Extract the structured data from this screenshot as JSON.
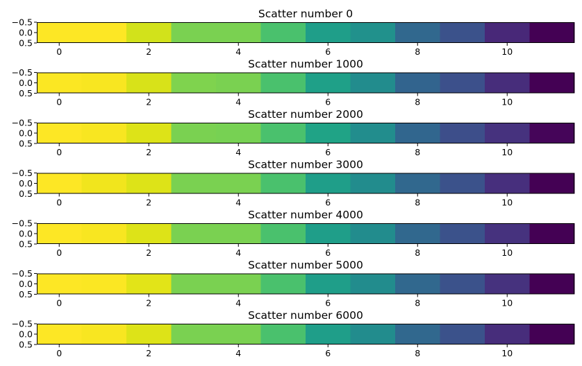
{
  "chart_data": [
    {
      "type": "heatmap",
      "title": "Scatter number 0",
      "x": [
        0,
        1,
        2,
        3,
        4,
        5,
        6,
        7,
        8,
        9,
        10,
        11
      ],
      "cell_colors": [
        "#fde725",
        "#fde725",
        "#d2e21b",
        "#7ad151",
        "#7ad151",
        "#4ac16d",
        "#1f9e89",
        "#21918c",
        "#31688e",
        "#3b528b",
        "#482878",
        "#440154"
      ],
      "xlim": [
        -0.5,
        11.5
      ],
      "ylim": [
        0.5,
        -0.5
      ],
      "xticks": [
        "0",
        "2",
        "4",
        "6",
        "8",
        "10"
      ],
      "yticks": [
        "−0.5",
        "0.0",
        "0.5"
      ]
    },
    {
      "type": "heatmap",
      "title": "Scatter number 1000",
      "x": [
        0,
        1,
        2,
        3,
        4,
        5,
        6,
        7,
        8,
        9,
        10,
        11
      ],
      "cell_colors": [
        "#fbe723",
        "#f8e621",
        "#d8e219",
        "#7fd34e",
        "#7ad151",
        "#4ac16d",
        "#1fa088",
        "#228c8d",
        "#32648e",
        "#3c508b",
        "#472d7b",
        "#440154"
      ],
      "xlim": [
        -0.5,
        11.5
      ],
      "ylim": [
        0.5,
        -0.5
      ],
      "xticks": [
        "0",
        "2",
        "4",
        "6",
        "8",
        "10"
      ],
      "yticks": [
        "−0.5",
        "0.0",
        "0.5"
      ]
    },
    {
      "type": "heatmap",
      "title": "Scatter number 2000",
      "x": [
        0,
        1,
        2,
        3,
        4,
        5,
        6,
        7,
        8,
        9,
        10,
        11
      ],
      "cell_colors": [
        "#fde725",
        "#f8e621",
        "#dde318",
        "#7ad151",
        "#77d153",
        "#4ac16d",
        "#20a386",
        "#228d8d",
        "#31668e",
        "#3d4e8a",
        "#46327e",
        "#450559"
      ],
      "xlim": [
        -0.5,
        11.5
      ],
      "ylim": [
        0.5,
        -0.5
      ],
      "xticks": [
        "0",
        "2",
        "4",
        "6",
        "8",
        "10"
      ],
      "yticks": [
        "−0.5",
        "0.0",
        "0.5"
      ]
    },
    {
      "type": "heatmap",
      "title": "Scatter number 3000",
      "x": [
        0,
        1,
        2,
        3,
        4,
        5,
        6,
        7,
        8,
        9,
        10,
        11
      ],
      "cell_colors": [
        "#fde725",
        "#f1e51d",
        "#dde318",
        "#7ad151",
        "#7ad151",
        "#4ac16d",
        "#1f9e89",
        "#228c8d",
        "#31688e",
        "#3b528b",
        "#472f7d",
        "#440154"
      ],
      "xlim": [
        -0.5,
        11.5
      ],
      "ylim": [
        0.5,
        -0.5
      ],
      "xticks": [
        "0",
        "2",
        "4",
        "6",
        "8",
        "10"
      ],
      "yticks": [
        "−0.5",
        "0.0",
        "0.5"
      ]
    },
    {
      "type": "heatmap",
      "title": "Scatter number 4000",
      "x": [
        0,
        1,
        2,
        3,
        4,
        5,
        6,
        7,
        8,
        9,
        10,
        11
      ],
      "cell_colors": [
        "#fde725",
        "#f8e621",
        "#dde318",
        "#7ad151",
        "#7ad151",
        "#4ac16d",
        "#1f9e89",
        "#228c8d",
        "#31688e",
        "#3b528b",
        "#46327e",
        "#440154"
      ],
      "xlim": [
        -0.5,
        11.5
      ],
      "ylim": [
        0.5,
        -0.5
      ],
      "xticks": [
        "0",
        "2",
        "4",
        "6",
        "8",
        "10"
      ],
      "yticks": [
        "−0.5",
        "0.0",
        "0.5"
      ]
    },
    {
      "type": "heatmap",
      "title": "Scatter number 5000",
      "x": [
        0,
        1,
        2,
        3,
        4,
        5,
        6,
        7,
        8,
        9,
        10,
        11
      ],
      "cell_colors": [
        "#fde725",
        "#fbe723",
        "#e2e418",
        "#7ad151",
        "#7ad151",
        "#4ac16d",
        "#1f9e89",
        "#228c8d",
        "#31688e",
        "#3b528b",
        "#46327e",
        "#440154"
      ],
      "xlim": [
        -0.5,
        11.5
      ],
      "ylim": [
        0.5,
        -0.5
      ],
      "xticks": [
        "0",
        "2",
        "4",
        "6",
        "8",
        "10"
      ],
      "yticks": [
        "−0.5",
        "0.0",
        "0.5"
      ]
    },
    {
      "type": "heatmap",
      "title": "Scatter number 6000",
      "x": [
        0,
        1,
        2,
        3,
        4,
        5,
        6,
        7,
        8,
        9,
        10,
        11
      ],
      "cell_colors": [
        "#fde725",
        "#f8e621",
        "#dde318",
        "#7ad151",
        "#7ad151",
        "#4ac16d",
        "#1f9e89",
        "#228c8d",
        "#31688e",
        "#3b528b",
        "#472d7b",
        "#440154"
      ],
      "xlim": [
        -0.5,
        11.5
      ],
      "ylim": [
        0.5,
        -0.5
      ],
      "xticks": [
        "0",
        "2",
        "4",
        "6",
        "8",
        "10"
      ],
      "yticks": [
        "−0.5",
        "0.0",
        "0.5"
      ]
    }
  ]
}
